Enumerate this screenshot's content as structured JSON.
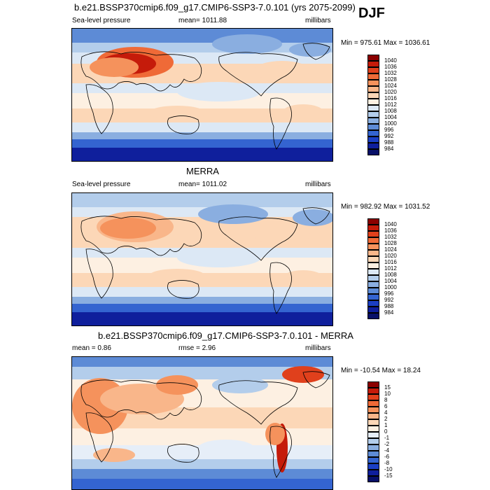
{
  "season": "DJF",
  "panel1": {
    "title": "b.e21.BSSP370cmip6.f09_g17.CMIP6-SSP3-7.0.101 (yrs 2075-2099)",
    "left_label": "Sea-level pressure",
    "center_label": "mean= 1011.88",
    "right_label": "millibars",
    "minmax": "Min = 975.61 Max = 1036.61"
  },
  "panel2": {
    "title": "MERRA",
    "left_label": "Sea-level pressure",
    "center_label": "mean= 1011.02",
    "right_label": "millibars",
    "minmax": "Min = 982.92 Max = 1031.52"
  },
  "panel3": {
    "title": "b.e21.BSSP370cmip6.f09_g17.CMIP6-SSP3-7.0.101 - MERRA",
    "mean_label": "mean =   0.86",
    "rmse_label": "rmse =   2.96",
    "right_label": "millibars",
    "minmax": "Min = -10.54 Max =  18.24"
  },
  "colorbar_slp": {
    "labels": [
      "1040",
      "1036",
      "1032",
      "1028",
      "1024",
      "1020",
      "1016",
      "1012",
      "1008",
      "1004",
      "1000",
      "996",
      "992",
      "988",
      "984"
    ],
    "colors": [
      "#8b0000",
      "#c51b0a",
      "#e0401c",
      "#ef6a37",
      "#f5925c",
      "#f9b68a",
      "#fcd7b7",
      "#fdf0e2",
      "#dce8f5",
      "#b3cdeb",
      "#8aaee0",
      "#5d8bd6",
      "#3464d0",
      "#1b3fc4",
      "#0f1f9c",
      "#081068"
    ]
  },
  "colorbar_diff": {
    "labels": [
      "15",
      "10",
      "8",
      "6",
      "4",
      "2",
      "1",
      "0",
      "-1",
      "-2",
      "-4",
      "-6",
      "-8",
      "-10",
      "-15"
    ],
    "colors": [
      "#8b0000",
      "#c51b0a",
      "#e0401c",
      "#ef6a37",
      "#f5925c",
      "#f9b68a",
      "#fcd7b7",
      "#fdf0e2",
      "#e6eef8",
      "#b3cdeb",
      "#8aaee0",
      "#5d8bd6",
      "#3464d0",
      "#1b3fc4",
      "#0f1f9c",
      "#081068"
    ]
  },
  "chart_data": [
    {
      "type": "heatmap",
      "title": "b.e21.BSSP370cmip6.f09_g17.CMIP6-SSP3-7.0.101 (yrs 2075-2099)",
      "variable": "Sea-level pressure",
      "units": "millibars",
      "mean": 1011.88,
      "min": 975.61,
      "max": 1036.61,
      "contour_levels": [
        984,
        988,
        992,
        996,
        1000,
        1004,
        1008,
        1012,
        1016,
        1020,
        1024,
        1028,
        1032,
        1036,
        1040
      ]
    },
    {
      "type": "heatmap",
      "title": "MERRA",
      "variable": "Sea-level pressure",
      "units": "millibars",
      "mean": 1011.02,
      "min": 982.92,
      "max": 1031.52,
      "contour_levels": [
        984,
        988,
        992,
        996,
        1000,
        1004,
        1008,
        1012,
        1016,
        1020,
        1024,
        1028,
        1032,
        1036,
        1040
      ]
    },
    {
      "type": "heatmap",
      "title": "b.e21.BSSP370cmip6.f09_g17.CMIP6-SSP3-7.0.101 - MERRA",
      "units": "millibars",
      "mean": 0.86,
      "rmse": 2.96,
      "min": -10.54,
      "max": 18.24,
      "contour_levels": [
        -15,
        -10,
        -8,
        -6,
        -4,
        -2,
        -1,
        0,
        1,
        2,
        4,
        6,
        8,
        10,
        15
      ]
    }
  ]
}
